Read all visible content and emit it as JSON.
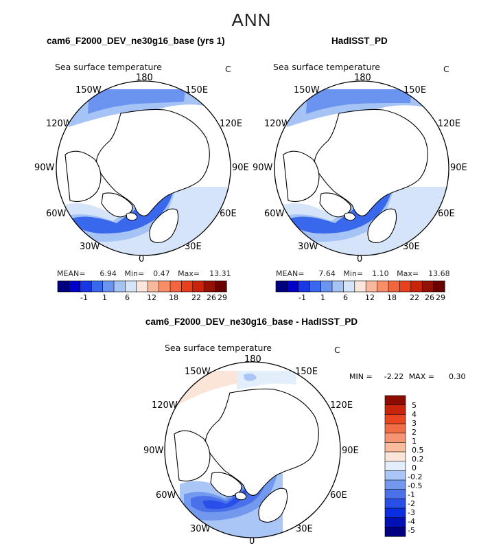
{
  "season": "ANN",
  "colors": {
    "cb_abs": [
      "#00007f",
      "#0000c8",
      "#1a37e6",
      "#3a68ec",
      "#6a94f0",
      "#a5c3f5",
      "#d5e4f9",
      "#fbe5dc",
      "#f8b89d",
      "#f78e68",
      "#f2653d",
      "#e8401d",
      "#c8240c",
      "#951005",
      "#6a0000"
    ],
    "cb_diff": [
      "#000080",
      "#0011b8",
      "#0a2ee0",
      "#2850e8",
      "#4a70ea",
      "#7399ef",
      "#a9c6f6",
      "#e3eefb",
      "#fbe4d8",
      "#f9bc9c",
      "#f69573",
      "#f26c45",
      "#e84520",
      "#c8240c",
      "#8c0c00"
    ]
  },
  "panels": [
    {
      "title": "cam6_F2000_DEV_ne30g16_base (yrs 1)",
      "var_label": "Sea surface temperature",
      "units": "C",
      "lon_labels": [
        "180",
        "150E",
        "120E",
        "90E",
        "60E",
        "30E",
        "0",
        "30W",
        "60W",
        "90W",
        "120W",
        "150W"
      ],
      "stats": {
        "mean_label": "MEAN=",
        "mean": "6.94",
        "min_label": "Min=",
        "min": "0.47",
        "max_label": "Max=",
        "max": "13.31"
      },
      "colorbar_labels": [
        "-1",
        "1",
        "6",
        "12",
        "18",
        "22",
        "26",
        "29"
      ]
    },
    {
      "title": "HadISST_PD",
      "var_label": "Sea surface temperature",
      "units": "C",
      "lon_labels": [
        "180",
        "150E",
        "120E",
        "90E",
        "60E",
        "30E",
        "0",
        "30W",
        "60W",
        "90W",
        "120W",
        "150W"
      ],
      "stats": {
        "mean_label": "MEAN=",
        "mean": "7.64",
        "min_label": "Min=",
        "min": "1.10",
        "max_label": "Max=",
        "max": "13.68"
      },
      "colorbar_labels": [
        "-1",
        "1",
        "6",
        "12",
        "18",
        "22",
        "26",
        "29"
      ]
    },
    {
      "title": "cam6_F2000_DEV_ne30g16_base - HadISST_PD",
      "var_label": "Sea surface temperature",
      "units": "C",
      "lon_labels": [
        "180",
        "150E",
        "120E",
        "90E",
        "60E",
        "30E",
        "0",
        "30W",
        "60W",
        "90W",
        "120W",
        "150W"
      ],
      "minmax": {
        "min_label": "MIN =",
        "min": "-2.22",
        "max_label": "MAX =",
        "max": "0.30"
      },
      "colorbar_labels": [
        "5",
        "4",
        "3",
        "2",
        "1",
        "0.5",
        "0.2",
        "0",
        "-0.2",
        "-0.5",
        "-1",
        "-2",
        "-3",
        "-4",
        "-5"
      ]
    }
  ],
  "chart_data": [
    {
      "type": "heatmap",
      "projection": "north polar stereographic",
      "title": "cam6_F2000_DEV_ne30g16_base (yrs 1)",
      "variable": "Sea surface temperature",
      "units": "C",
      "statistics": {
        "mean": 6.94,
        "min": 0.47,
        "max": 13.31
      },
      "contour_levels": [
        -1,
        1,
        6,
        12,
        18,
        22,
        26,
        29
      ],
      "longitude_labels": [
        "180",
        "150E",
        "120E",
        "90E",
        "60E",
        "30E",
        "0",
        "30W",
        "60W",
        "90W",
        "120W",
        "150W"
      ]
    },
    {
      "type": "heatmap",
      "projection": "north polar stereographic",
      "title": "HadISST_PD",
      "variable": "Sea surface temperature",
      "units": "C",
      "statistics": {
        "mean": 7.64,
        "min": 1.1,
        "max": 13.68
      },
      "contour_levels": [
        -1,
        1,
        6,
        12,
        18,
        22,
        26,
        29
      ],
      "longitude_labels": [
        "180",
        "150E",
        "120E",
        "90E",
        "60E",
        "30E",
        "0",
        "30W",
        "60W",
        "90W",
        "120W",
        "150W"
      ]
    },
    {
      "type": "heatmap",
      "projection": "north polar stereographic",
      "title": "cam6_F2000_DEV_ne30g16_base - HadISST_PD",
      "variable": "Sea surface temperature",
      "units": "C",
      "statistics": {
        "min": -2.22,
        "max": 0.3
      },
      "contour_levels": [
        -5,
        -4,
        -3,
        -2,
        -1,
        -0.5,
        -0.2,
        0,
        0.2,
        0.5,
        1,
        2,
        3,
        4,
        5
      ],
      "longitude_labels": [
        "180",
        "150E",
        "120E",
        "90E",
        "60E",
        "30E",
        "0",
        "30W",
        "60W",
        "90W",
        "120W",
        "150W"
      ]
    }
  ]
}
